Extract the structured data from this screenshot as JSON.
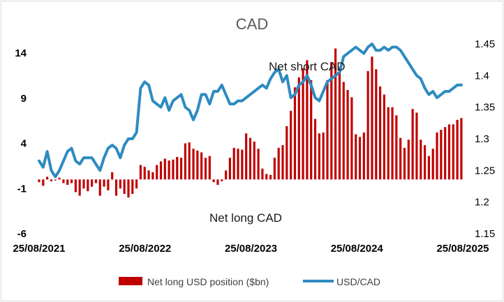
{
  "chart_data": {
    "type": "bar+line",
    "title": "CAD",
    "x_labels": [
      "25/08/2021",
      "25/08/2022",
      "25/08/2023",
      "25/08/2024",
      "25/08/2025"
    ],
    "x_range": [
      "2021-08-25",
      "2025-08-25"
    ],
    "y_left": {
      "ticks": [
        14,
        9,
        4,
        -1,
        -6
      ],
      "range": [
        -6,
        14
      ]
    },
    "y_right": {
      "ticks": [
        1.45,
        1.4,
        1.35,
        1.3,
        1.25,
        1.2,
        1.15
      ],
      "range": [
        1.15,
        1.45
      ]
    },
    "annotations": [
      "Net short CAD",
      "Net long CAD"
    ],
    "legend_position": "bottom",
    "grid": false,
    "series": [
      {
        "name": "Net long USD position ($bn)",
        "kind": "bar",
        "axis": "left",
        "color": "#c00000",
        "x": [
          "2021-08-25",
          "2021-09-08",
          "2021-09-22",
          "2021-10-06",
          "2021-10-20",
          "2021-11-03",
          "2021-11-17",
          "2021-12-01",
          "2021-12-15",
          "2021-12-29",
          "2022-01-12",
          "2022-01-26",
          "2022-02-09",
          "2022-02-23",
          "2022-03-09",
          "2022-03-23",
          "2022-04-06",
          "2022-04-20",
          "2022-05-04",
          "2022-05-18",
          "2022-06-01",
          "2022-06-15",
          "2022-06-29",
          "2022-07-13",
          "2022-07-27",
          "2022-08-10",
          "2022-08-24",
          "2022-09-07",
          "2022-09-21",
          "2022-10-05",
          "2022-10-19",
          "2022-11-02",
          "2022-11-16",
          "2022-11-30",
          "2022-12-14",
          "2022-12-28",
          "2023-01-11",
          "2023-01-25",
          "2023-02-08",
          "2023-02-22",
          "2023-03-08",
          "2023-03-22",
          "2023-04-05",
          "2023-04-19",
          "2023-05-03",
          "2023-05-17",
          "2023-05-31",
          "2023-06-14",
          "2023-06-28",
          "2023-07-12",
          "2023-07-26",
          "2023-08-09",
          "2023-08-23",
          "2023-09-06",
          "2023-09-20",
          "2023-10-04",
          "2023-10-18",
          "2023-11-01",
          "2023-11-15",
          "2023-11-29",
          "2023-12-13",
          "2023-12-27",
          "2024-01-10",
          "2024-01-24",
          "2024-02-07",
          "2024-02-21",
          "2024-03-06",
          "2024-03-20",
          "2024-04-03",
          "2024-04-17",
          "2024-05-01",
          "2024-05-15",
          "2024-05-29",
          "2024-06-12",
          "2024-06-26",
          "2024-07-10",
          "2024-07-24",
          "2024-08-07",
          "2024-08-21",
          "2024-09-04",
          "2024-09-18",
          "2024-10-02",
          "2024-10-16",
          "2024-10-30",
          "2024-11-13",
          "2024-11-27",
          "2024-12-11",
          "2024-12-25",
          "2025-01-08",
          "2025-01-22",
          "2025-02-05",
          "2025-02-19",
          "2025-03-05",
          "2025-03-19",
          "2025-04-02",
          "2025-04-16",
          "2025-04-30",
          "2025-05-14",
          "2025-05-28",
          "2025-06-11",
          "2025-06-25",
          "2025-07-09",
          "2025-07-23",
          "2025-08-06",
          "2025-08-20"
        ],
        "values": [
          -0.3,
          -0.7,
          0.3,
          -0.2,
          -0.1,
          0.2,
          -0.4,
          -0.6,
          -0.4,
          -1.4,
          -1.8,
          -1.0,
          -1.3,
          -0.8,
          -0.4,
          -1.8,
          -0.8,
          -1.2,
          0.8,
          -1.8,
          -1.0,
          -1.6,
          -2.0,
          -1.6,
          -1.0,
          1.6,
          1.4,
          1.0,
          0.8,
          1.6,
          2.0,
          2.3,
          2.1,
          2.2,
          2.5,
          2.4,
          4.0,
          4.1,
          3.4,
          3.2,
          3.0,
          2.4,
          2.6,
          -0.3,
          -0.6,
          -0.2,
          1.0,
          2.4,
          3.5,
          3.4,
          3.3,
          5.1,
          4.6,
          4.2,
          3.4,
          1.2,
          0.6,
          0.5,
          2.4,
          3.5,
          3.8,
          5.9,
          7.6,
          10.2,
          11.3,
          12.3,
          13.2,
          11.0,
          6.7,
          5.1,
          5.2,
          11.0,
          13.0,
          14.5,
          12.4,
          10.8,
          9.9,
          9.1,
          5.0,
          4.7,
          5.2,
          12.0,
          13.6,
          12.2,
          10.3,
          9.4,
          8.0,
          8.0,
          7.1,
          4.6,
          3.5,
          4.4,
          7.8,
          7.4,
          4.4,
          3.8,
          2.6,
          3.4,
          5.2,
          5.5,
          5.8,
          6.1,
          6.1,
          6.6,
          6.8
        ]
      },
      {
        "name": "USD/CAD",
        "kind": "line",
        "axis": "right",
        "color": "#2e8bc0",
        "x": [
          "2021-08-25",
          "2021-09-08",
          "2021-09-22",
          "2021-10-06",
          "2021-10-20",
          "2021-11-03",
          "2021-11-17",
          "2021-12-01",
          "2021-12-15",
          "2021-12-29",
          "2022-01-12",
          "2022-01-26",
          "2022-02-09",
          "2022-02-23",
          "2022-03-09",
          "2022-03-23",
          "2022-04-06",
          "2022-04-20",
          "2022-05-04",
          "2022-05-18",
          "2022-06-01",
          "2022-06-15",
          "2022-06-29",
          "2022-07-13",
          "2022-07-27",
          "2022-08-10",
          "2022-08-24",
          "2022-09-07",
          "2022-09-21",
          "2022-10-05",
          "2022-10-19",
          "2022-11-02",
          "2022-11-16",
          "2022-11-30",
          "2022-12-14",
          "2022-12-28",
          "2023-01-11",
          "2023-01-25",
          "2023-02-08",
          "2023-02-22",
          "2023-03-08",
          "2023-03-22",
          "2023-04-05",
          "2023-04-19",
          "2023-05-03",
          "2023-05-17",
          "2023-05-31",
          "2023-06-14",
          "2023-06-28",
          "2023-07-12",
          "2023-07-26",
          "2023-08-09",
          "2023-08-23",
          "2023-09-06",
          "2023-09-20",
          "2023-10-04",
          "2023-10-18",
          "2023-11-01",
          "2023-11-15",
          "2023-11-29",
          "2023-12-13",
          "2023-12-27",
          "2024-01-10",
          "2024-01-24",
          "2024-02-07",
          "2024-02-21",
          "2024-03-06",
          "2024-03-20",
          "2024-04-03",
          "2024-04-17",
          "2024-05-01",
          "2024-05-15",
          "2024-05-29",
          "2024-06-12",
          "2024-06-26",
          "2024-07-10",
          "2024-07-24",
          "2024-08-07",
          "2024-08-21",
          "2024-09-04",
          "2024-09-18",
          "2024-10-02",
          "2024-10-16",
          "2024-10-30",
          "2024-11-13",
          "2024-11-27",
          "2024-12-11",
          "2024-12-25",
          "2025-01-08",
          "2025-01-22",
          "2025-02-05",
          "2025-02-19",
          "2025-03-05",
          "2025-03-19",
          "2025-04-02",
          "2025-04-16",
          "2025-04-30",
          "2025-05-14",
          "2025-05-28",
          "2025-06-11",
          "2025-06-25",
          "2025-07-09",
          "2025-07-23",
          "2025-08-06",
          "2025-08-20"
        ],
        "values": [
          1.265,
          1.255,
          1.28,
          1.25,
          1.24,
          1.25,
          1.265,
          1.28,
          1.285,
          1.265,
          1.26,
          1.27,
          1.27,
          1.27,
          1.26,
          1.25,
          1.27,
          1.285,
          1.29,
          1.285,
          1.27,
          1.29,
          1.3,
          1.3,
          1.31,
          1.38,
          1.39,
          1.385,
          1.36,
          1.355,
          1.35,
          1.365,
          1.345,
          1.36,
          1.365,
          1.37,
          1.35,
          1.345,
          1.33,
          1.345,
          1.37,
          1.37,
          1.355,
          1.375,
          1.375,
          1.385,
          1.37,
          1.355,
          1.355,
          1.36,
          1.36,
          1.365,
          1.37,
          1.375,
          1.38,
          1.385,
          1.38,
          1.395,
          1.405,
          1.41,
          1.39,
          1.4,
          1.365,
          1.37,
          1.385,
          1.39,
          1.4,
          1.385,
          1.365,
          1.36,
          1.375,
          1.39,
          1.395,
          1.4,
          1.405,
          1.43,
          1.435,
          1.44,
          1.445,
          1.44,
          1.435,
          1.445,
          1.45,
          1.44,
          1.44,
          1.445,
          1.44,
          1.445,
          1.445,
          1.44,
          1.43,
          1.42,
          1.41,
          1.4,
          1.395,
          1.38,
          1.37,
          1.375,
          1.365,
          1.37,
          1.375,
          1.375,
          1.38,
          1.385,
          1.385
        ]
      }
    ]
  }
}
